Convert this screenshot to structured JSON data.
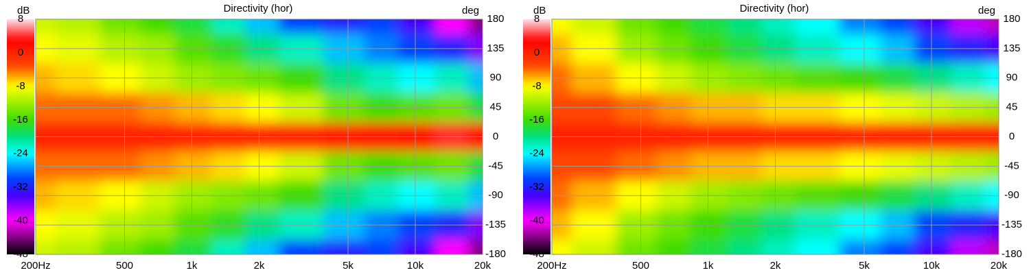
{
  "chart_data": [
    {
      "type": "heatmap",
      "title": "Directivity (hor)",
      "colorbar_label": "dB",
      "y_label": "deg",
      "x_scale": "log",
      "grid": true,
      "xlim": [
        200,
        20000
      ],
      "xticks": [
        {
          "value": 200,
          "label": "200Hz"
        },
        500,
        {
          "value": 1000,
          "label": "1k"
        },
        {
          "value": 2000,
          "label": "2k"
        },
        {
          "value": 5000,
          "label": "5k"
        },
        {
          "value": 10000,
          "label": "10k"
        },
        {
          "value": 20000,
          "label": "20k"
        }
      ],
      "ylim": [
        -180,
        180
      ],
      "yticks": [
        180,
        135,
        90,
        45,
        0,
        -45,
        -90,
        -135,
        -180
      ],
      "clim": [
        -48,
        8
      ],
      "cticks": [
        8,
        0,
        -8,
        -16,
        -24,
        -32,
        -40,
        -48
      ],
      "x": [
        200,
        300,
        500,
        700,
        1000,
        1500,
        2000,
        3000,
        5000,
        7000,
        10000,
        15000,
        20000
      ],
      "y": [
        180,
        135,
        90,
        45,
        0,
        -45,
        -90,
        -135,
        -180
      ],
      "z": [
        [
          -10,
          -11,
          -14,
          -16,
          -18,
          -22,
          -26,
          -30,
          -32,
          -30,
          -34,
          -40,
          -44
        ],
        [
          -8,
          -9,
          -11,
          -12,
          -15,
          -17,
          -20,
          -22,
          -26,
          -28,
          -30,
          -32,
          -36
        ],
        [
          -6,
          -7,
          -8,
          -10,
          -12,
          -13,
          -14,
          -16,
          -20,
          -22,
          -24,
          -22,
          -26
        ],
        [
          -4,
          -4,
          -4,
          -5,
          -6,
          -7,
          -8,
          -10,
          -14,
          -16,
          -15,
          -14,
          -18
        ],
        [
          0,
          0,
          0,
          0,
          0,
          0,
          0,
          0,
          1,
          1,
          2,
          4,
          2
        ],
        [
          -4,
          -4,
          -4,
          -5,
          -6,
          -7,
          -8,
          -10,
          -14,
          -16,
          -15,
          -14,
          -18
        ],
        [
          -6,
          -7,
          -8,
          -10,
          -12,
          -13,
          -14,
          -16,
          -20,
          -22,
          -24,
          -22,
          -26
        ],
        [
          -8,
          -9,
          -11,
          -12,
          -15,
          -17,
          -20,
          -22,
          -26,
          -28,
          -30,
          -32,
          -36
        ],
        [
          -10,
          -11,
          -14,
          -16,
          -18,
          -22,
          -26,
          -30,
          -32,
          -30,
          -34,
          -40,
          -44
        ]
      ]
    },
    {
      "type": "heatmap",
      "title": "Directivity (hor)",
      "colorbar_label": "dB",
      "y_label": "deg",
      "x_scale": "log",
      "grid": true,
      "xlim": [
        200,
        20000
      ],
      "xticks": [
        {
          "value": 200,
          "label": "200Hz"
        },
        500,
        {
          "value": 1000,
          "label": "1k"
        },
        {
          "value": 2000,
          "label": "2k"
        },
        {
          "value": 5000,
          "label": "5k"
        },
        {
          "value": 10000,
          "label": "10k"
        },
        {
          "value": 20000,
          "label": "20k"
        }
      ],
      "ylim": [
        -180,
        180
      ],
      "yticks": [
        180,
        135,
        90,
        45,
        0,
        -45,
        -90,
        -135,
        -180
      ],
      "clim": [
        -48,
        8
      ],
      "cticks": [
        8,
        0,
        -8,
        -16,
        -24,
        -32,
        -40,
        -48
      ],
      "x": [
        200,
        300,
        500,
        700,
        1000,
        1500,
        2000,
        3000,
        5000,
        7000,
        10000,
        15000,
        20000
      ],
      "y": [
        180,
        135,
        90,
        45,
        0,
        -45,
        -90,
        -135,
        -180
      ],
      "z": [
        [
          -8,
          -10,
          -14,
          -16,
          -18,
          -20,
          -22,
          -24,
          -28,
          -30,
          -34,
          -38,
          -42
        ],
        [
          -6,
          -8,
          -12,
          -14,
          -16,
          -18,
          -20,
          -22,
          -24,
          -26,
          -30,
          -32,
          -34
        ],
        [
          -4,
          -6,
          -8,
          -10,
          -12,
          -13,
          -14,
          -15,
          -16,
          -18,
          -20,
          -22,
          -24
        ],
        [
          -3,
          -3,
          -4,
          -5,
          -6,
          -6,
          -7,
          -7,
          -8,
          -9,
          -10,
          -11,
          -12
        ],
        [
          0,
          0,
          0,
          0,
          0,
          0,
          0,
          0,
          0,
          0,
          0,
          0,
          0
        ],
        [
          -3,
          -3,
          -4,
          -5,
          -6,
          -6,
          -7,
          -7,
          -8,
          -9,
          -10,
          -11,
          -12
        ],
        [
          -4,
          -6,
          -8,
          -10,
          -12,
          -13,
          -14,
          -15,
          -16,
          -18,
          -20,
          -22,
          -24
        ],
        [
          -6,
          -8,
          -12,
          -14,
          -16,
          -18,
          -20,
          -22,
          -24,
          -26,
          -30,
          -32,
          -34
        ],
        [
          -8,
          -10,
          -14,
          -16,
          -18,
          -20,
          -22,
          -24,
          -28,
          -30,
          -34,
          -38,
          -42
        ]
      ]
    }
  ]
}
